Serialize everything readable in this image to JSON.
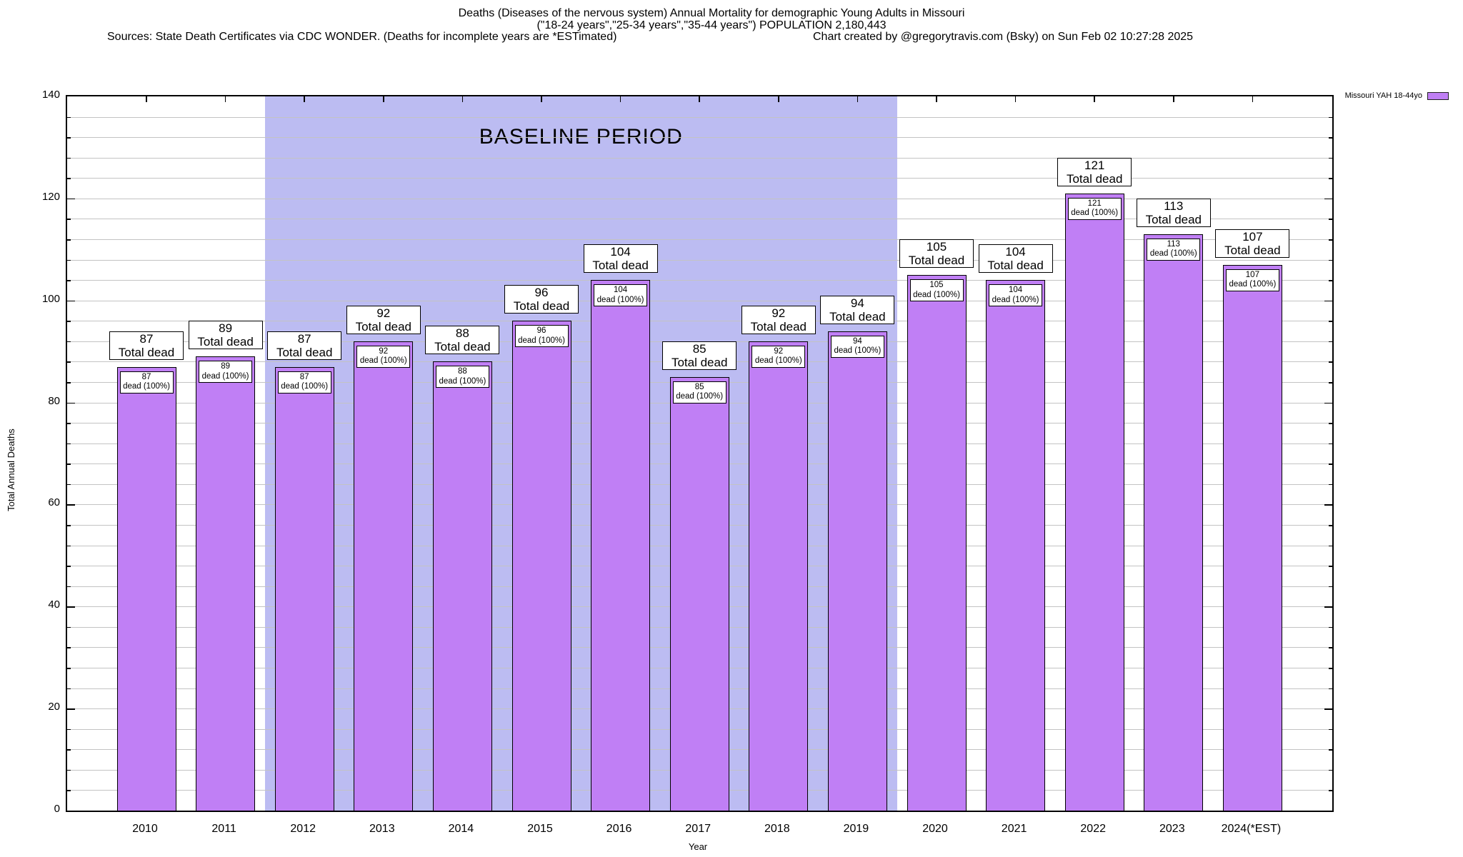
{
  "header": {
    "title_line1": "Deaths (Diseases of the nervous system) Annual Mortality for demographic Young Adults in Missouri",
    "title_line2": "(\"18-24 years\",\"25-34 years\",\"35-44 years\") POPULATION 2,180,443",
    "sources": "Sources: State Death Certificates via CDC WONDER. (Deaths for incomplete years are *ESTimated)",
    "credit": "Chart created by @gregorytravis.com (Bsky) on Sun Feb 02 10:27:28 2025"
  },
  "legend": {
    "label": "Missouri YAH 18-44yo",
    "swatch_color": "#c07ff5"
  },
  "chart_data": {
    "type": "bar",
    "title": "Deaths (Diseases of the nervous system) Annual Mortality for demographic Young Adults in Missouri",
    "subtitle": "(\"18-24 years\",\"25-34 years\",\"35-44 years\") POPULATION 2,180,443",
    "xlabel": "Year",
    "ylabel": "Total Annual Deaths",
    "categories": [
      "2010",
      "2011",
      "2012",
      "2013",
      "2014",
      "2015",
      "2016",
      "2017",
      "2018",
      "2019",
      "2020",
      "2021",
      "2022",
      "2023",
      "2024(*EST)"
    ],
    "values": [
      87,
      89,
      87,
      92,
      88,
      96,
      104,
      85,
      92,
      94,
      105,
      104,
      121,
      113,
      107
    ],
    "series_name": "Missouri YAH 18-44yo",
    "ylim": [
      0,
      140
    ],
    "ytick_step": 20,
    "minor_grid_step": 4,
    "grid": "horizontal",
    "legend_position": "top-right",
    "bar_color": "#c07ff5",
    "bar_top_label_suffix": "Total dead",
    "bar_inner_label_suffix": "dead (100%)",
    "baseline_period": {
      "label": "BASELINE PERIOD",
      "start_category": "2012",
      "end_category": "2019",
      "region_color": "#bcbcf2"
    }
  }
}
